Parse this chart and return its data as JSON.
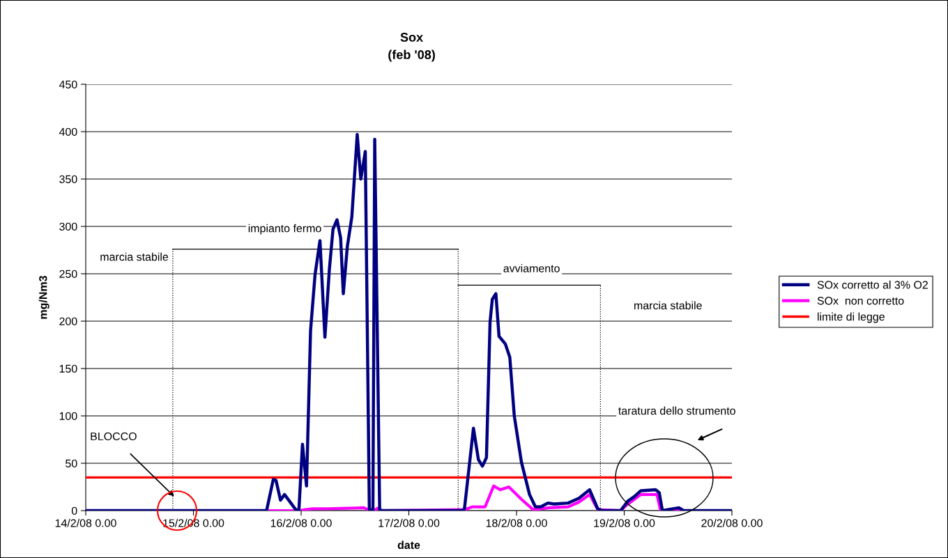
{
  "chart_data": {
    "type": "line",
    "title": "Sox",
    "subtitle": "(feb '08)",
    "xlabel": "date",
    "ylabel": "mg/Nm3",
    "series": [
      {
        "name": "SOx corretto al 3% O2",
        "color": "#000080",
        "x": [
          "2008-02-14T00:00",
          "2008-02-15T16:18",
          "2008-02-15T17:48",
          "2008-02-15T18:24",
          "2008-02-15T19:24",
          "2008-02-15T20:18",
          "2008-02-15T21:24",
          "2008-02-15T22:48",
          "2008-02-15T23:30",
          "2008-02-16T00:18",
          "2008-02-16T01:12",
          "2008-02-16T02:06",
          "2008-02-16T03:06",
          "2008-02-16T04:12",
          "2008-02-16T05:18",
          "2008-02-16T06:18",
          "2008-02-16T07:06",
          "2008-02-16T08:00",
          "2008-02-16T08:48",
          "2008-02-16T09:24",
          "2008-02-16T10:18",
          "2008-02-16T11:18",
          "2008-02-16T12:30",
          "2008-02-16T13:18",
          "2008-02-16T14:18",
          "2008-02-16T15:12",
          "2008-02-16T16:00",
          "2008-02-16T16:24",
          "2008-02-16T17:30",
          "2008-02-16T18:00",
          "2008-02-17T12:00",
          "2008-02-17T12:24",
          "2008-02-17T14:24",
          "2008-02-17T15:30",
          "2008-02-17T16:24",
          "2008-02-17T17:18",
          "2008-02-17T18:06",
          "2008-02-17T18:36",
          "2008-02-17T19:24",
          "2008-02-17T20:06",
          "2008-02-17T21:30",
          "2008-02-17T22:30",
          "2008-02-17T23:30",
          "2008-02-18T01:06",
          "2008-02-18T02:54",
          "2008-02-18T04:12",
          "2008-02-18T05:24",
          "2008-02-18T07:00",
          "2008-02-18T08:24",
          "2008-02-18T11:30",
          "2008-02-18T13:54",
          "2008-02-18T16:18",
          "2008-02-18T18:06",
          "2008-02-18T19:00",
          "2008-02-18T23:12",
          "2008-02-19T00:48",
          "2008-02-19T02:18",
          "2008-02-19T03:42",
          "2008-02-19T07:00",
          "2008-02-19T07:48",
          "2008-02-19T08:30",
          "2008-02-19T12:12",
          "2008-02-19T13:12",
          "2008-02-20T00:00"
        ],
        "values": [
          0,
          0,
          33,
          32,
          11,
          17,
          10,
          1,
          0,
          70,
          26,
          190,
          249,
          285,
          183,
          255,
          297,
          307,
          288,
          229,
          279,
          310,
          397,
          350,
          379,
          1,
          1,
          392,
          1,
          0,
          0,
          2,
          87,
          54,
          47,
          56,
          199,
          223,
          229,
          184,
          176,
          162,
          100,
          51,
          17,
          4,
          4,
          8,
          7,
          8,
          13,
          22,
          2,
          0,
          0,
          10,
          15,
          21,
          22,
          19,
          0,
          3,
          0,
          0
        ]
      },
      {
        "name": "SOx  non corretto",
        "color": "#ff00ff",
        "x": [
          "2008-02-14T00:00",
          "2008-02-15T23:30",
          "2008-02-16T01:00",
          "2008-02-16T02:30",
          "2008-02-16T06:00",
          "2008-02-16T10:00",
          "2008-02-16T14:00",
          "2008-02-16T15:12",
          "2008-02-16T16:24",
          "2008-02-16T17:00",
          "2008-02-16T18:00",
          "2008-02-17T12:24",
          "2008-02-17T14:12",
          "2008-02-17T17:00",
          "2008-02-17T18:54",
          "2008-02-17T20:24",
          "2008-02-17T22:18",
          "2008-02-18T01:06",
          "2008-02-18T03:42",
          "2008-02-18T07:18",
          "2008-02-18T11:30",
          "2008-02-18T13:54",
          "2008-02-18T16:18",
          "2008-02-18T18:06",
          "2008-02-18T23:12",
          "2008-02-19T00:48",
          "2008-02-19T02:18",
          "2008-02-19T03:42",
          "2008-02-19T07:18",
          "2008-02-19T08:06",
          "2008-02-20T00:00"
        ],
        "values": [
          0,
          0,
          1,
          2,
          2,
          2.5,
          3,
          0.5,
          0.5,
          2.5,
          0,
          1,
          4,
          4,
          26,
          22,
          25,
          12,
          1,
          3,
          4,
          9,
          17,
          1,
          0,
          7,
          12,
          17,
          17,
          0,
          0
        ]
      },
      {
        "name": "limite di legge",
        "color": "#ff0000",
        "x": [
          "2008-02-14T00:00",
          "2008-02-20T00:00"
        ],
        "values": [
          35,
          35
        ]
      }
    ],
    "xlim": [
      "2008-02-14T00:00",
      "2008-02-20T00:00"
    ],
    "xticks": [
      {
        "value": "2008-02-14T00:00",
        "label": "14/2/08 0.00"
      },
      {
        "value": "2008-02-15T00:00",
        "label": "15/2/08 0.00"
      },
      {
        "value": "2008-02-16T00:00",
        "label": "16/2/08 0.00"
      },
      {
        "value": "2008-02-17T00:00",
        "label": "17/2/08 0.00"
      },
      {
        "value": "2008-02-18T00:00",
        "label": "18/2/08 0.00"
      },
      {
        "value": "2008-02-19T00:00",
        "label": "19/2/08 0.00"
      },
      {
        "value": "2008-02-20T00:00",
        "label": "20/2/08 0.00"
      }
    ],
    "ylim": [
      0,
      450
    ],
    "yticks": [
      0,
      50,
      100,
      150,
      200,
      250,
      300,
      350,
      400,
      450
    ],
    "ref_lines": [
      {
        "axis": "x",
        "value": "2008-02-14T19:24",
        "label": null,
        "color": "#000000",
        "line_style": "dotted"
      },
      {
        "axis": "x",
        "value": "2008-02-17T11:00",
        "label": null,
        "color": "#000000",
        "line_style": "dotted"
      },
      {
        "axis": "x",
        "value": "2008-02-18T18:42",
        "label": null,
        "color": "#000000",
        "line_style": "dotted"
      }
    ],
    "annotations": [
      "marcia stabile",
      "impianto fermo",
      "avviamento",
      "marcia stabile",
      "taratura dello strumento",
      {
        "text": "BLOCCO",
        "x": "2008-02-14T19:42",
        "y": 15
      }
    ],
    "grid": "y",
    "legend": "right",
    "marker": "none",
    "line_style": "solid"
  }
}
